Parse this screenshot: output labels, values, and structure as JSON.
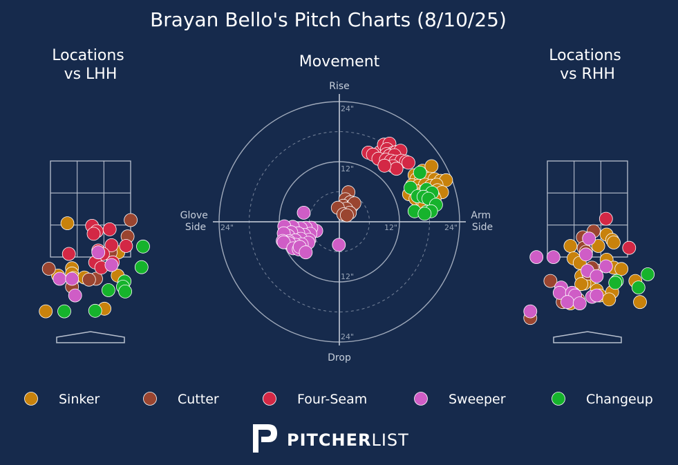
{
  "page": {
    "title": "Brayan Bello's Pitch Charts (8/10/25)"
  },
  "colors": {
    "background": "#162a4c",
    "grid": "#b9c1cf",
    "Sinker": "#c8820c",
    "Cutter": "#9a4530",
    "Four-Seam": "#d32845",
    "Sweeper": "#cf5dc6",
    "Changeup": "#16b32c"
  },
  "branding": {
    "logo_bold": "PITCHER",
    "logo_light": "LIST",
    "logo_icon": "pitcherlist-p-icon"
  },
  "legend": [
    "Sinker",
    "Cutter",
    "Four-Seam",
    "Sweeper",
    "Changeup"
  ],
  "chart_data": [
    {
      "type": "scatter",
      "title": "Locations\nvs LHH",
      "xlim": [
        -1.9,
        1.9
      ],
      "ylim": [
        -0.5,
        5.3
      ],
      "series": [
        {
          "name": "Sinker",
          "points": [
            [
              -0.75,
              4.28
            ],
            [
              -0.6,
              2.58
            ],
            [
              -0.6,
              2.38
            ],
            [
              -1.05,
              2.3
            ],
            [
              0.9,
              3.18
            ],
            [
              0.88,
              2.3
            ],
            [
              -0.55,
              2.21
            ],
            [
              0.45,
              1.05
            ],
            [
              -1.45,
              0.95
            ],
            [
              -0.2,
              2.23
            ]
          ]
        },
        {
          "name": "Cutter",
          "points": [
            [
              1.3,
              4.4
            ],
            [
              1.2,
              3.78
            ],
            [
              0.65,
              3.18
            ],
            [
              -1.35,
              2.56
            ],
            [
              0.18,
              2.18
            ],
            [
              -0.05,
              2.15
            ],
            [
              -0.6,
              1.88
            ]
          ]
        },
        {
          "name": "Four-Seam",
          "points": [
            [
              0.05,
              4.18
            ],
            [
              0.2,
              3.98
            ],
            [
              0.62,
              4.05
            ],
            [
              0.1,
              3.88
            ],
            [
              0.68,
              3.45
            ],
            [
              1.15,
              3.42
            ],
            [
              0.25,
              3.25
            ],
            [
              -0.7,
              3.12
            ],
            [
              0.4,
              3.12
            ],
            [
              0.15,
              2.8
            ],
            [
              0.72,
              2.8
            ],
            [
              0.35,
              2.6
            ]
          ]
        },
        {
          "name": "Sweeper",
          "points": [
            [
              0.25,
              3.18
            ],
            [
              0.68,
              2.7
            ],
            [
              -1.0,
              2.18
            ],
            [
              -0.6,
              2.18
            ],
            [
              -0.5,
              1.55
            ]
          ]
        },
        {
          "name": "Changeup",
          "points": [
            [
              1.7,
              3.4
            ],
            [
              1.65,
              2.62
            ],
            [
              1.1,
              2.08
            ],
            [
              1.05,
              1.88
            ],
            [
              1.12,
              1.7
            ],
            [
              0.58,
              1.75
            ],
            [
              -0.85,
              0.95
            ],
            [
              0.15,
              0.97
            ]
          ]
        }
      ]
    },
    {
      "type": "scatter",
      "title": "Movement",
      "xlabel_left": "Glove\nSide",
      "xlabel_right": "Arm\nSide",
      "ylabel_top": "Rise",
      "ylabel_bottom": "Drop",
      "ring_labels": [
        "12\"",
        "24\""
      ],
      "xlim": [
        -24,
        24
      ],
      "ylim": [
        -24,
        24
      ],
      "series": [
        {
          "name": "Sinker",
          "points": [
            [
              15,
              9.3
            ],
            [
              16.6,
              10.2
            ],
            [
              18.4,
              11.1
            ],
            [
              15.4,
              8.5
            ],
            [
              16.2,
              8.2
            ],
            [
              17,
              8.4
            ],
            [
              18,
              8.6
            ],
            [
              19,
              8.5
            ],
            [
              20.2,
              8.2
            ],
            [
              21.3,
              8.3
            ],
            [
              14.5,
              7.3
            ],
            [
              15.8,
              7.2
            ],
            [
              17.1,
              7.4
            ],
            [
              18.3,
              7.2
            ],
            [
              19.4,
              7.4
            ],
            [
              14.2,
              5.9
            ],
            [
              15.5,
              6.1
            ],
            [
              17,
              6.2
            ],
            [
              18.2,
              5.9
            ],
            [
              19.6,
              6.3
            ],
            [
              20.5,
              5.9
            ],
            [
              13.9,
              5.5
            ],
            [
              16,
              5.4
            ],
            [
              17.5,
              5.2
            ],
            [
              18.8,
              5.1
            ],
            [
              15.2,
              4.6
            ],
            [
              16.5,
              4.2
            ],
            [
              17.8,
              4.2
            ],
            [
              19,
              4.6
            ],
            [
              17,
              3.5
            ],
            [
              18.5,
              3.2
            ]
          ]
        },
        {
          "name": "Cutter",
          "points": [
            [
              1.8,
              5.9
            ],
            [
              1.2,
              4.5
            ],
            [
              2.2,
              3.9
            ],
            [
              0.8,
              3.2
            ],
            [
              2.5,
              3.1
            ],
            [
              3.0,
              3.7
            ],
            [
              1.4,
              2.6
            ],
            [
              -0.3,
              2.8
            ],
            [
              2.1,
              1.8
            ],
            [
              0.8,
              1.5
            ],
            [
              1.5,
              1.3
            ]
          ]
        },
        {
          "name": "Four-Seam",
          "points": [
            [
              8.1,
              13.9
            ],
            [
              8.9,
              15.4
            ],
            [
              10,
              15.6
            ],
            [
              9.5,
              14.5
            ],
            [
              10.6,
              13.7
            ],
            [
              11.3,
              13.9
            ],
            [
              12.2,
              14.2
            ],
            [
              9.4,
              13.5
            ],
            [
              10,
              13.2
            ],
            [
              11,
              13.3
            ],
            [
              5.8,
              13.8
            ],
            [
              6.7,
              13.4
            ],
            [
              7.8,
              12.6
            ],
            [
              9.3,
              12.4
            ],
            [
              10.3,
              12.2
            ],
            [
              11.2,
              12.0
            ],
            [
              12.4,
              12.2
            ],
            [
              13.3,
              12.0
            ],
            [
              10.7,
              11.1
            ],
            [
              11.4,
              10.6
            ],
            [
              9.0,
              11.2
            ],
            [
              13.8,
              11.8
            ]
          ]
        },
        {
          "name": "Sweeper",
          "points": [
            [
              -7.1,
              1.8
            ],
            [
              -4.6,
              -1.8
            ],
            [
              -5.6,
              -1.2
            ],
            [
              -6.7,
              -1.2
            ],
            [
              -7.7,
              -1.3
            ],
            [
              -9.3,
              -1.0
            ],
            [
              -11.0,
              -0.9
            ],
            [
              -5.8,
              -2.4
            ],
            [
              -7,
              -2.6
            ],
            [
              -8.2,
              -2.3
            ],
            [
              -9.6,
              -2.1
            ],
            [
              -10.2,
              -2.8
            ],
            [
              -11.1,
              -2.3
            ],
            [
              -6.0,
              -3.6
            ],
            [
              -7.7,
              -3.4
            ],
            [
              -8.8,
              -3.7
            ],
            [
              -10.1,
              -3.9
            ],
            [
              -11.3,
              -3.8
            ],
            [
              -6.2,
              -4.2
            ],
            [
              -7.5,
              -4.5
            ],
            [
              -8.7,
              -4.6
            ],
            [
              -10,
              -4.3
            ],
            [
              -11.1,
              -4.1
            ],
            [
              -9.2,
              -5.3
            ],
            [
              -8.1,
              -5.5
            ],
            [
              -7.9,
              -5.0
            ],
            [
              -6.7,
              -6.1
            ],
            [
              -0.1,
              -4.6
            ]
          ]
        },
        {
          "name": "Changeup",
          "points": [
            [
              16.1,
              9.8
            ],
            [
              14.2,
              6.8
            ],
            [
              17.4,
              6.5
            ],
            [
              18.5,
              5.8
            ],
            [
              15.6,
              5.1
            ],
            [
              16.8,
              5.0
            ],
            [
              17.8,
              4.6
            ],
            [
              19.3,
              3.4
            ],
            [
              15.0,
              2.1
            ],
            [
              17.4,
              2.0
            ],
            [
              18.3,
              2.1
            ],
            [
              17.0,
              1.6
            ]
          ]
        }
      ]
    },
    {
      "type": "scatter",
      "title": "Locations\nvs RHH",
      "xlim": [
        -1.9,
        1.9
      ],
      "ylim": [
        -0.5,
        5.3
      ],
      "series": [
        {
          "name": "Sinker",
          "points": [
            [
              0.62,
              3.85
            ],
            [
              0.8,
              3.65
            ],
            [
              0.85,
              3.55
            ],
            [
              -0.55,
              3.42
            ],
            [
              0.35,
              3.42
            ],
            [
              -0.45,
              2.95
            ],
            [
              -0.25,
              2.78
            ],
            [
              0.62,
              2.9
            ],
            [
              0.85,
              2.6
            ],
            [
              1.1,
              2.55
            ],
            [
              -0.2,
              2.28
            ],
            [
              0.05,
              2.1
            ],
            [
              -0.1,
              2.0
            ],
            [
              -0.2,
              1.98
            ],
            [
              0.3,
              1.75
            ],
            [
              0.8,
              1.68
            ],
            [
              1.55,
              2.1
            ],
            [
              0.4,
              1.55
            ],
            [
              0.7,
              1.4
            ],
            [
              -0.6,
              1.45
            ],
            [
              1.7,
              1.3
            ],
            [
              -0.55,
              1.25
            ]
          ]
        },
        {
          "name": "Cutter",
          "points": [
            [
              0.2,
              3.98
            ],
            [
              -0.15,
              3.75
            ],
            [
              -0.12,
              3.35
            ],
            [
              -0.05,
              3.2
            ],
            [
              0.03,
              2.38
            ],
            [
              0.28,
              2.5
            ],
            [
              0.15,
              2.6
            ],
            [
              -1.2,
              2.1
            ],
            [
              -0.7,
              1.6
            ],
            [
              -0.45,
              1.62
            ],
            [
              -0.3,
              1.4
            ],
            [
              -0.8,
              1.3
            ],
            [
              -1.85,
              0.7
            ]
          ]
        },
        {
          "name": "Four-Seam",
          "points": [
            [
              0.6,
              4.45
            ],
            [
              1.35,
              3.35
            ]
          ]
        },
        {
          "name": "Sweeper",
          "points": [
            [
              0.05,
              3.7
            ],
            [
              -0.05,
              3.1
            ],
            [
              -1.65,
              3.0
            ],
            [
              -1.1,
              3.0
            ],
            [
              0.6,
              2.65
            ],
            [
              0.0,
              2.48
            ],
            [
              0.3,
              2.28
            ],
            [
              -0.85,
              1.85
            ],
            [
              -0.9,
              1.65
            ],
            [
              -0.5,
              1.65
            ],
            [
              -0.4,
              1.55
            ],
            [
              0.15,
              1.5
            ],
            [
              0.3,
              1.55
            ],
            [
              -0.65,
              1.3
            ],
            [
              -0.25,
              1.25
            ],
            [
              -1.85,
              0.95
            ]
          ]
        },
        {
          "name": "Changeup",
          "points": [
            [
              1.95,
              2.35
            ],
            [
              0.95,
              2.1
            ],
            [
              0.9,
              2.03
            ],
            [
              1.65,
              1.85
            ]
          ]
        }
      ]
    }
  ]
}
